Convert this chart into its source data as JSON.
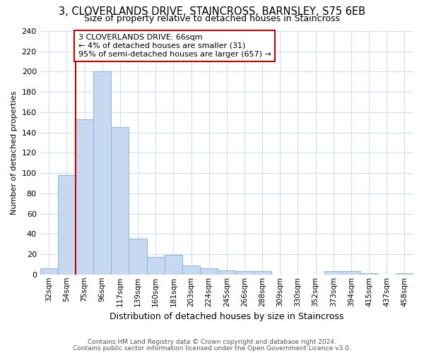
{
  "title1": "3, CLOVERLANDS DRIVE, STAINCROSS, BARNSLEY, S75 6EB",
  "title2": "Size of property relative to detached houses in Staincross",
  "xlabel": "Distribution of detached houses by size in Staincross",
  "ylabel": "Number of detached properties",
  "categories": [
    "32sqm",
    "54sqm",
    "75sqm",
    "96sqm",
    "117sqm",
    "139sqm",
    "160sqm",
    "181sqm",
    "203sqm",
    "224sqm",
    "245sqm",
    "266sqm",
    "288sqm",
    "309sqm",
    "330sqm",
    "352sqm",
    "373sqm",
    "394sqm",
    "415sqm",
    "437sqm",
    "458sqm"
  ],
  "values": [
    6,
    98,
    153,
    200,
    145,
    35,
    17,
    19,
    9,
    6,
    4,
    3,
    3,
    0,
    0,
    0,
    3,
    3,
    1,
    0,
    1
  ],
  "bar_color": "#c6d9f1",
  "bar_edge_color": "#8db4e2",
  "marker_label": "3 CLOVERLANDS DRIVE: 66sqm",
  "annotation_line1": "← 4% of detached houses are smaller (31)",
  "annotation_line2": "95% of semi-detached houses are larger (657) →",
  "annotation_box_color": "#ffffff",
  "annotation_box_edge": "#cc0000",
  "marker_line_color": "#cc0000",
  "ylim": [
    0,
    240
  ],
  "yticks": [
    0,
    20,
    40,
    60,
    80,
    100,
    120,
    140,
    160,
    180,
    200,
    220,
    240
  ],
  "footer1": "Contains HM Land Registry data © Crown copyright and database right 2024.",
  "footer2": "Contains public sector information licensed under the Open Government Licence v3.0.",
  "bg_color": "#ffffff",
  "grid_color": "#d0dff0",
  "title1_fontsize": 10.5,
  "title2_fontsize": 9,
  "ylabel_fontsize": 8,
  "xlabel_fontsize": 9,
  "tick_fontsize": 7.5,
  "footer_fontsize": 6.5
}
